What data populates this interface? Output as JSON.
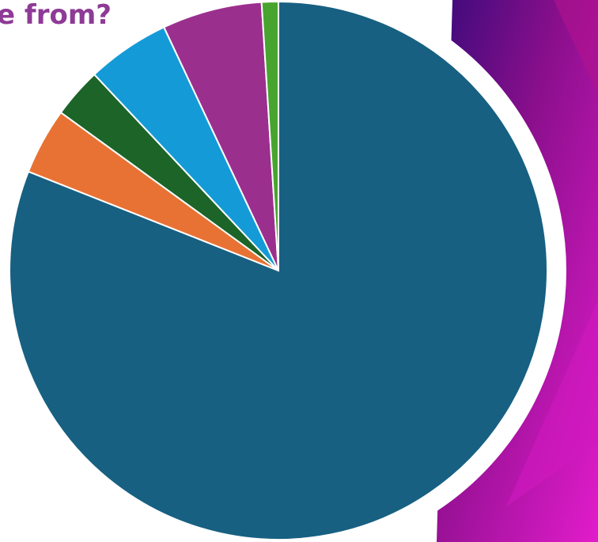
{
  "chart_data": {
    "type": "pie",
    "title": "e from?",
    "values": [
      81,
      4,
      3,
      5,
      6,
      1
    ],
    "colors": [
      "#176082",
      "#e87234",
      "#1c6428",
      "#149bd7",
      "#9b2f8e",
      "#47a52f"
    ]
  }
}
